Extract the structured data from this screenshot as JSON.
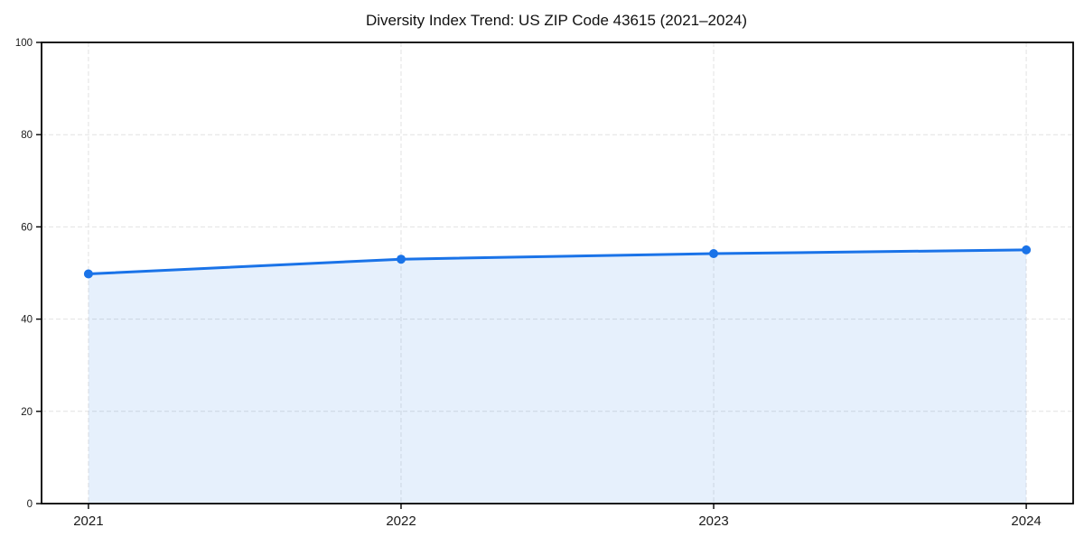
{
  "chart_data": {
    "type": "line",
    "title": "Diversity Index Trend: US ZIP Code 43615 (2021–2024)",
    "x": [
      2021,
      2022,
      2023,
      2024
    ],
    "x_tick_labels": [
      "2021",
      "2022",
      "2023",
      "2024"
    ],
    "series": [
      {
        "name": "Diversity Index",
        "values": [
          49.8,
          53.0,
          54.2,
          55.0
        ]
      }
    ],
    "area_fill": true,
    "markers": true,
    "xlabel": "",
    "ylabel": "",
    "ylim": [
      0,
      100
    ],
    "yticks": [
      0,
      20,
      40,
      60,
      80,
      100
    ],
    "grid": {
      "visible": true,
      "style": "dashed"
    },
    "legend": {
      "visible": false
    },
    "colors": {
      "line": "#1a73e8",
      "marker": "#1a73e8",
      "area_fill": "rgba(26,115,232,0.11)",
      "grid": "#e2e2e2",
      "spine": "#000000",
      "tick": "#000000",
      "background": "#ffffff"
    }
  }
}
